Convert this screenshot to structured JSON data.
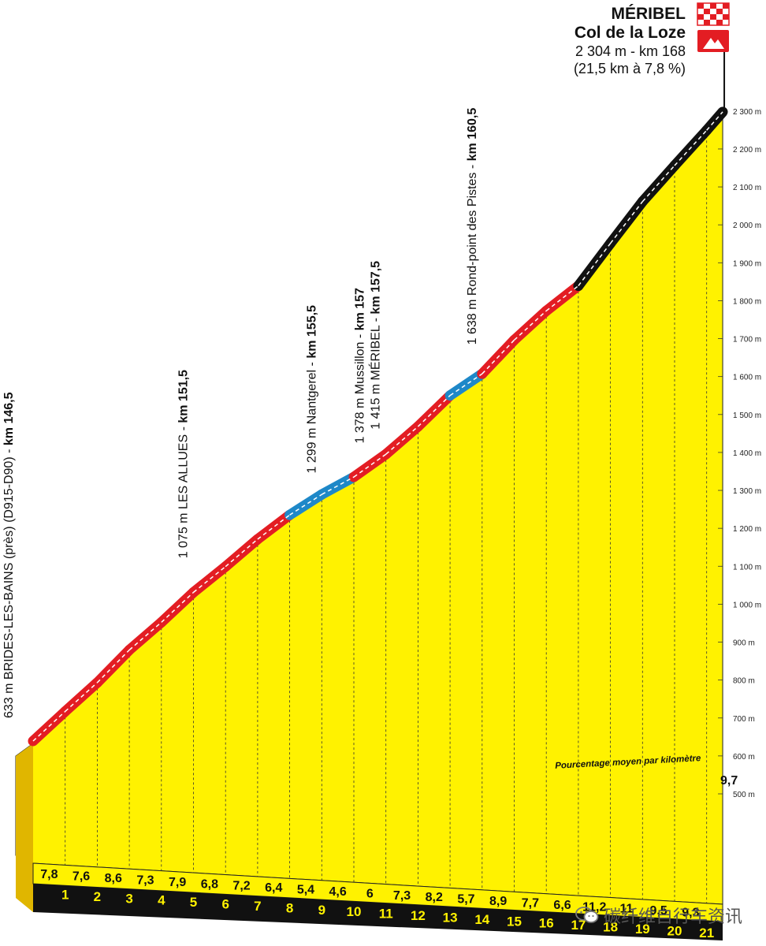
{
  "summit": {
    "name": "MÉRIBEL",
    "subname": "Col de la Loze",
    "altitude_line": "2 304 m - km 168",
    "climb_line": "(21,5 km à 7,8 %)"
  },
  "legend_note": "Pourcentage moyen par kilomètre",
  "watermark": "碳纤维自行车资讯",
  "chart_data": {
    "type": "area",
    "title": "",
    "y_axis": {
      "range": [
        500,
        2300
      ],
      "ticks": [
        500,
        600,
        700,
        800,
        900,
        1000,
        1100,
        1200,
        1300,
        1400,
        1500,
        1600,
        1700,
        1800,
        1900,
        2000,
        2100,
        2200,
        2300
      ],
      "tick_labels": [
        "500 m",
        "600 m",
        "700 m",
        "800 m",
        "900 m",
        "1 000 m",
        "1 100 m",
        "1 200 m",
        "1 300 m",
        "1 400 m",
        "1 500 m",
        "1 600 m",
        "1 700 m",
        "1 800 m",
        "1 900 m",
        "2 000 m",
        "2 100 m",
        "2 200 m",
        "2 300 m"
      ]
    },
    "km_markers": [
      "1",
      "2",
      "3",
      "4",
      "5",
      "6",
      "7",
      "8",
      "9",
      "10",
      "11",
      "12",
      "13",
      "14",
      "15",
      "16",
      "17",
      "18",
      "19",
      "20",
      "21"
    ],
    "gradients": [
      {
        "km": 1,
        "label": "7,8",
        "value": 7.8
      },
      {
        "km": 2,
        "label": "7,6",
        "value": 7.6
      },
      {
        "km": 3,
        "label": "8,6",
        "value": 8.6
      },
      {
        "km": 4,
        "label": "7,3",
        "value": 7.3
      },
      {
        "km": 5,
        "label": "7,9",
        "value": 7.9
      },
      {
        "km": 6,
        "label": "6,8",
        "value": 6.8
      },
      {
        "km": 7,
        "label": "7,2",
        "value": 7.2
      },
      {
        "km": 8,
        "label": "6,4",
        "value": 6.4
      },
      {
        "km": 9,
        "label": "5,4",
        "value": 5.4
      },
      {
        "km": 10,
        "label": "4,6",
        "value": 4.6
      },
      {
        "km": 11,
        "label": "6",
        "value": 6.0
      },
      {
        "km": 12,
        "label": "7,3",
        "value": 7.3
      },
      {
        "km": 13,
        "label": "8,2",
        "value": 8.2
      },
      {
        "km": 14,
        "label": "5,7",
        "value": 5.7
      },
      {
        "km": 15,
        "label": "8,9",
        "value": 8.9
      },
      {
        "km": 16,
        "label": "7,7",
        "value": 7.7
      },
      {
        "km": 17,
        "label": "6,6",
        "value": 6.6
      },
      {
        "km": 18,
        "label": "11,2",
        "value": 11.2
      },
      {
        "km": 19,
        "label": "11",
        "value": 11.0
      },
      {
        "km": 20,
        "label": "9,5",
        "value": 9.5
      },
      {
        "km": 21,
        "label": "9,3",
        "value": 9.3
      },
      {
        "km": 21.5,
        "label": "9,7",
        "value": 9.7
      }
    ],
    "start_altitude": 633,
    "waypoints": [
      {
        "text": "633 m BRIDES-LES-BAINS (près) (D915-D90) - ",
        "bold": "km 146,5",
        "km": 0,
        "alt": 633
      },
      {
        "text": "1 075 m LES ALLUES - ",
        "bold": "km 151,5",
        "km": 5,
        "alt": 1075
      },
      {
        "text": "1 299 m Nantgerel - ",
        "bold": "km 155,5",
        "km": 9,
        "alt": 1299
      },
      {
        "text": "1 378 m Mussillon - ",
        "bold": "km 157",
        "km": 10.5,
        "alt": 1378
      },
      {
        "text": "1 415 m MÉRIBEL - ",
        "bold": "km 157,5",
        "km": 11,
        "alt": 1415
      },
      {
        "text": "1 638 m Rond-point des Pistes - ",
        "bold": "km 160,5",
        "km": 14,
        "alt": 1638
      }
    ],
    "colors": {
      "fill": "#fff200",
      "red_road": "#e31d23",
      "blue_road": "#1e88c8",
      "black_road": "#111111",
      "axis_text": "#222222"
    }
  }
}
